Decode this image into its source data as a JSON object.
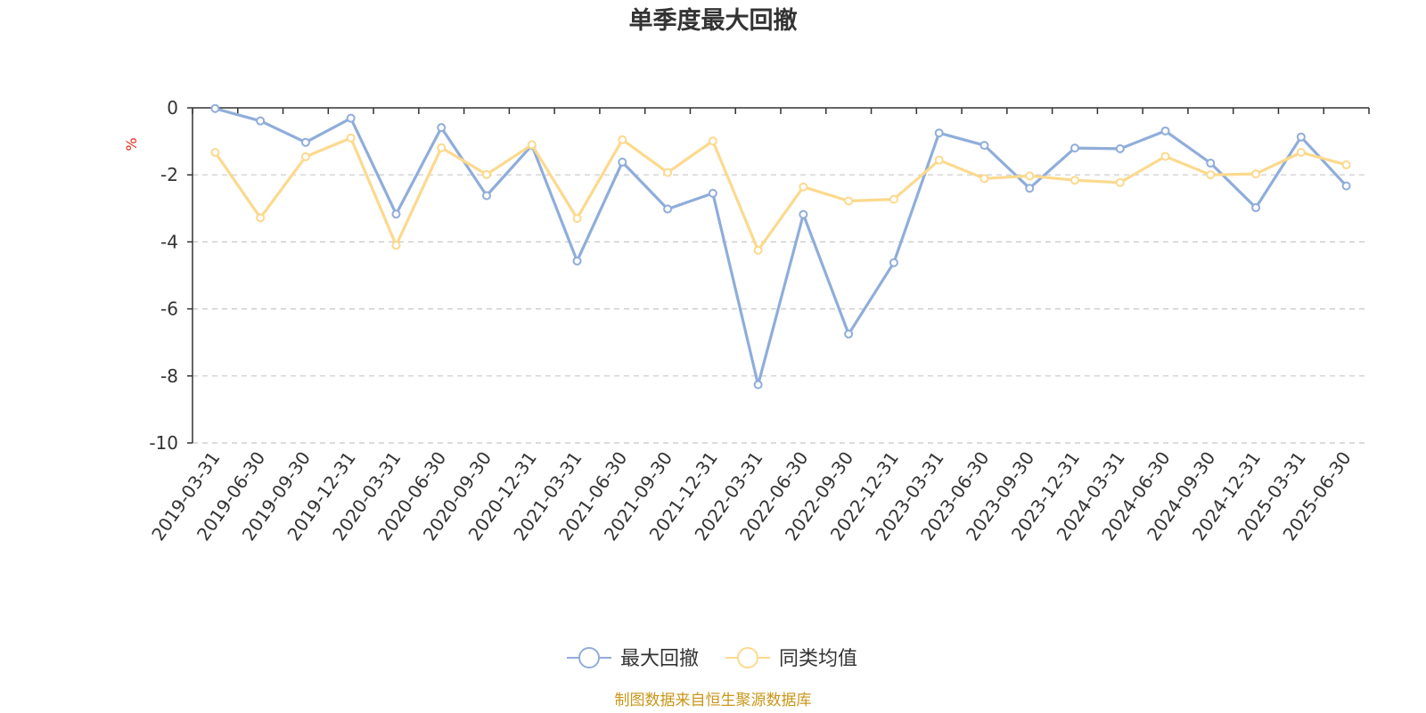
{
  "chart_data": {
    "type": "line",
    "title": "单季度最大回撤",
    "ylabel": "%",
    "ylim": [
      -10,
      0
    ],
    "yticks": [
      0,
      -2,
      -4,
      -6,
      -8,
      -10
    ],
    "grid": true,
    "legend_position": "bottom-center",
    "categories": [
      "2019-03-31",
      "2019-06-30",
      "2019-09-30",
      "2019-12-31",
      "2020-03-31",
      "2020-06-30",
      "2020-09-30",
      "2020-12-31",
      "2021-03-31",
      "2021-06-30",
      "2021-09-30",
      "2021-12-31",
      "2022-03-31",
      "2022-06-30",
      "2022-09-30",
      "2022-12-31",
      "2023-03-31",
      "2023-06-30",
      "2023-09-30",
      "2023-12-31",
      "2024-03-31",
      "2024-06-30",
      "2024-09-30",
      "2024-12-31",
      "2025-03-31",
      "2025-06-30"
    ],
    "series": [
      {
        "name": "最大回撤",
        "color": "#8fadda",
        "values": [
          -0.02,
          -0.39,
          -1.03,
          -0.31,
          -3.17,
          -0.59,
          -2.62,
          -1.12,
          -4.57,
          -1.62,
          -3.02,
          -2.55,
          -8.26,
          -3.18,
          -6.75,
          -4.62,
          -0.75,
          -1.12,
          -2.4,
          -1.2,
          -1.22,
          -0.69,
          -1.65,
          -2.98,
          -0.87,
          -2.33
        ]
      },
      {
        "name": "同类均值",
        "color": "#fcd98d",
        "values": [
          -1.33,
          -3.28,
          -1.46,
          -0.9,
          -4.1,
          -1.19,
          -1.99,
          -1.1,
          -3.3,
          -0.95,
          -1.93,
          -0.99,
          -4.25,
          -2.36,
          -2.78,
          -2.73,
          -1.56,
          -2.11,
          -2.03,
          -2.16,
          -2.23,
          -1.45,
          -2.0,
          -1.97,
          -1.33,
          -1.7
        ]
      }
    ]
  },
  "source_text": "制图数据来自恒生聚源数据库"
}
